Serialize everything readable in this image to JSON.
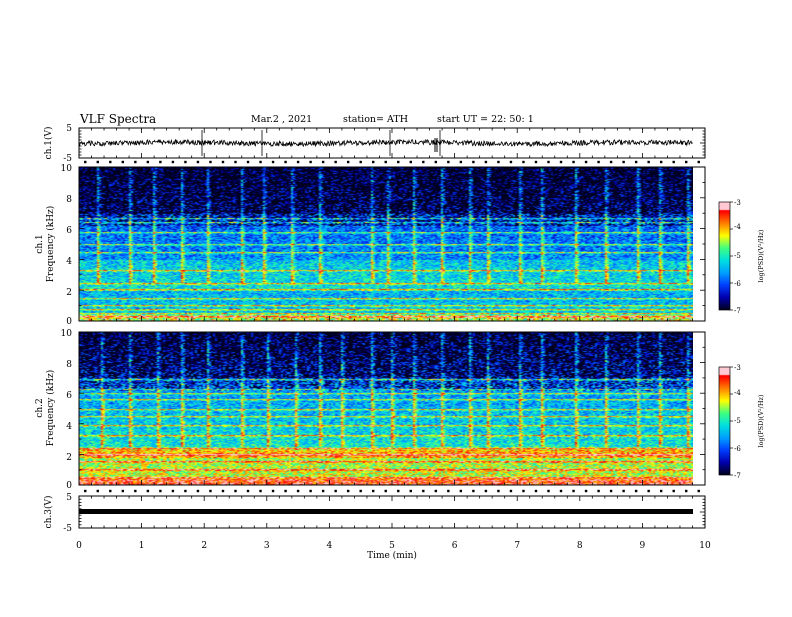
{
  "header": {
    "title": "VLF Spectra",
    "date": "Mar.2  , 2021",
    "station": "station= ATH",
    "start": "start  UT =   22: 50: 1"
  },
  "chart_data": [
    {
      "type": "line",
      "ylabel": "ch.1(V)",
      "ylim": [
        -5,
        5
      ],
      "yticks": [
        "5",
        "-5"
      ],
      "xlim": [
        0,
        10
      ],
      "approx_signal": "noisy trace around 0 V with sparse spikes"
    },
    {
      "type": "heatmap",
      "ylabel": "ch.1\nFrequency  (kHz)",
      "ylim": [
        0,
        10
      ],
      "yticks": [
        "0",
        "2",
        "4",
        "6",
        "8",
        "10"
      ],
      "xlim": [
        0,
        9.85
      ],
      "colorbar": {
        "label": "log(PSD)(V²/Hz)",
        "range": [
          -7,
          -3
        ],
        "ticks": [
          "-3",
          "-4",
          "-5",
          "-6",
          "-7"
        ]
      },
      "lines_khz": [
        0.3,
        0.55,
        0.8,
        1.05,
        1.5,
        2.1,
        2.5,
        3.3,
        4.5,
        5.0,
        5.8,
        6.4,
        6.7
      ],
      "spheric_times_min": [
        0.3,
        0.8,
        1.2,
        1.65,
        2.05,
        2.6,
        2.95,
        3.4,
        3.85,
        4.7,
        4.95,
        5.35,
        5.8,
        6.25,
        6.55,
        7.05,
        7.4,
        7.95,
        8.45,
        8.95,
        9.3,
        9.75
      ]
    },
    {
      "type": "heatmap",
      "ylabel": "ch.2\nFrequency  (kHz)",
      "ylim": [
        0,
        10
      ],
      "yticks": [
        "0",
        "2",
        "4",
        "6",
        "8",
        "10"
      ],
      "xlim": [
        0,
        9.85
      ],
      "colorbar": {
        "label": "log(PSD)(V²/Hz)",
        "range": [
          -7,
          -3
        ],
        "ticks": [
          "-3",
          "-4",
          "-5",
          "-6",
          "-7"
        ]
      },
      "lines_khz": [
        0.5,
        1.05,
        1.6,
        2.0,
        2.45,
        3.3,
        3.9,
        4.5,
        5.0,
        5.6,
        6.0,
        6.3,
        6.9
      ],
      "spheric_times_min": [
        0.35,
        0.8,
        1.25,
        1.65,
        2.05,
        2.6,
        3.0,
        3.45,
        3.85,
        4.2,
        4.7,
        5.0,
        5.35,
        5.8,
        6.25,
        6.55,
        7.05,
        7.4,
        7.95,
        8.45,
        8.95,
        9.3,
        9.75
      ]
    },
    {
      "type": "line",
      "ylabel": "ch.3(V)",
      "ylim": [
        -5,
        5
      ],
      "yticks": [
        "5",
        "-5"
      ],
      "xlabel": "Time  (min)",
      "xlim": [
        0,
        10
      ],
      "xticks": [
        "0",
        "1",
        "2",
        "3",
        "4",
        "5",
        "6",
        "7",
        "8",
        "9",
        "10"
      ],
      "approx_signal": "thick constant level near -1 V"
    }
  ],
  "colors": {
    "ink": "#000000",
    "background": "#ffffff",
    "colormap": [
      "#000020",
      "#0000b0",
      "#0040ff",
      "#00a0ff",
      "#00e0e0",
      "#40ff80",
      "#ffff00",
      "#ff8000",
      "#ff0000",
      "#ffc8d0"
    ]
  }
}
